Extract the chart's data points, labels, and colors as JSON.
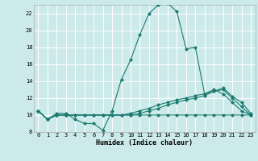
{
  "xlabel": "Humidex (Indice chaleur)",
  "bg_color": "#cceaea",
  "grid_color": "#ffffff",
  "line_color": "#1a7a6e",
  "xlim": [
    -0.5,
    23.5
  ],
  "ylim": [
    8,
    23
  ],
  "xticks": [
    0,
    1,
    2,
    3,
    4,
    5,
    6,
    7,
    8,
    9,
    10,
    11,
    12,
    13,
    14,
    15,
    16,
    17,
    18,
    19,
    20,
    21,
    22,
    23
  ],
  "yticks": [
    8,
    10,
    12,
    14,
    16,
    18,
    20,
    22
  ],
  "series": [
    {
      "x": [
        0,
        1,
        2,
        3,
        4,
        5,
        6,
        7,
        8,
        9,
        10,
        11,
        12,
        13,
        14,
        15,
        16,
        17,
        18,
        19,
        20,
        21,
        22,
        23
      ],
      "y": [
        10.5,
        9.5,
        10.2,
        10.2,
        9.5,
        9.0,
        9.0,
        8.2,
        10.5,
        14.2,
        16.5,
        19.5,
        22.0,
        23.0,
        23.2,
        22.2,
        17.8,
        18.0,
        12.5,
        13.0,
        12.5,
        11.5,
        10.5,
        10.0
      ]
    },
    {
      "x": [
        0,
        1,
        2,
        3,
        4,
        5,
        6,
        7,
        8,
        9,
        10,
        11,
        12,
        13,
        14,
        15,
        16,
        17,
        18,
        19,
        20,
        21,
        22,
        23
      ],
      "y": [
        10.5,
        9.5,
        10.0,
        10.0,
        10.0,
        10.0,
        10.0,
        10.0,
        10.0,
        10.0,
        10.0,
        10.2,
        10.5,
        10.8,
        11.2,
        11.5,
        11.8,
        12.0,
        12.3,
        12.8,
        13.2,
        12.2,
        11.5,
        10.2
      ]
    },
    {
      "x": [
        0,
        1,
        2,
        3,
        4,
        5,
        6,
        7,
        8,
        9,
        10,
        11,
        12,
        13,
        14,
        15,
        16,
        17,
        18,
        19,
        20,
        21,
        22,
        23
      ],
      "y": [
        10.5,
        9.5,
        10.0,
        10.0,
        10.0,
        10.0,
        10.0,
        10.0,
        10.0,
        10.0,
        10.0,
        10.0,
        10.0,
        10.0,
        10.0,
        10.0,
        10.0,
        10.0,
        10.0,
        10.0,
        10.0,
        10.0,
        10.0,
        10.0
      ]
    },
    {
      "x": [
        0,
        1,
        2,
        3,
        4,
        5,
        6,
        7,
        8,
        9,
        10,
        11,
        12,
        13,
        14,
        15,
        16,
        17,
        18,
        19,
        20,
        21,
        22,
        23
      ],
      "y": [
        10.5,
        9.5,
        10.0,
        10.0,
        10.0,
        10.0,
        10.0,
        10.0,
        10.0,
        10.0,
        10.2,
        10.5,
        10.8,
        11.2,
        11.5,
        11.8,
        12.0,
        12.3,
        12.5,
        12.8,
        13.0,
        12.0,
        11.0,
        10.0
      ]
    }
  ]
}
